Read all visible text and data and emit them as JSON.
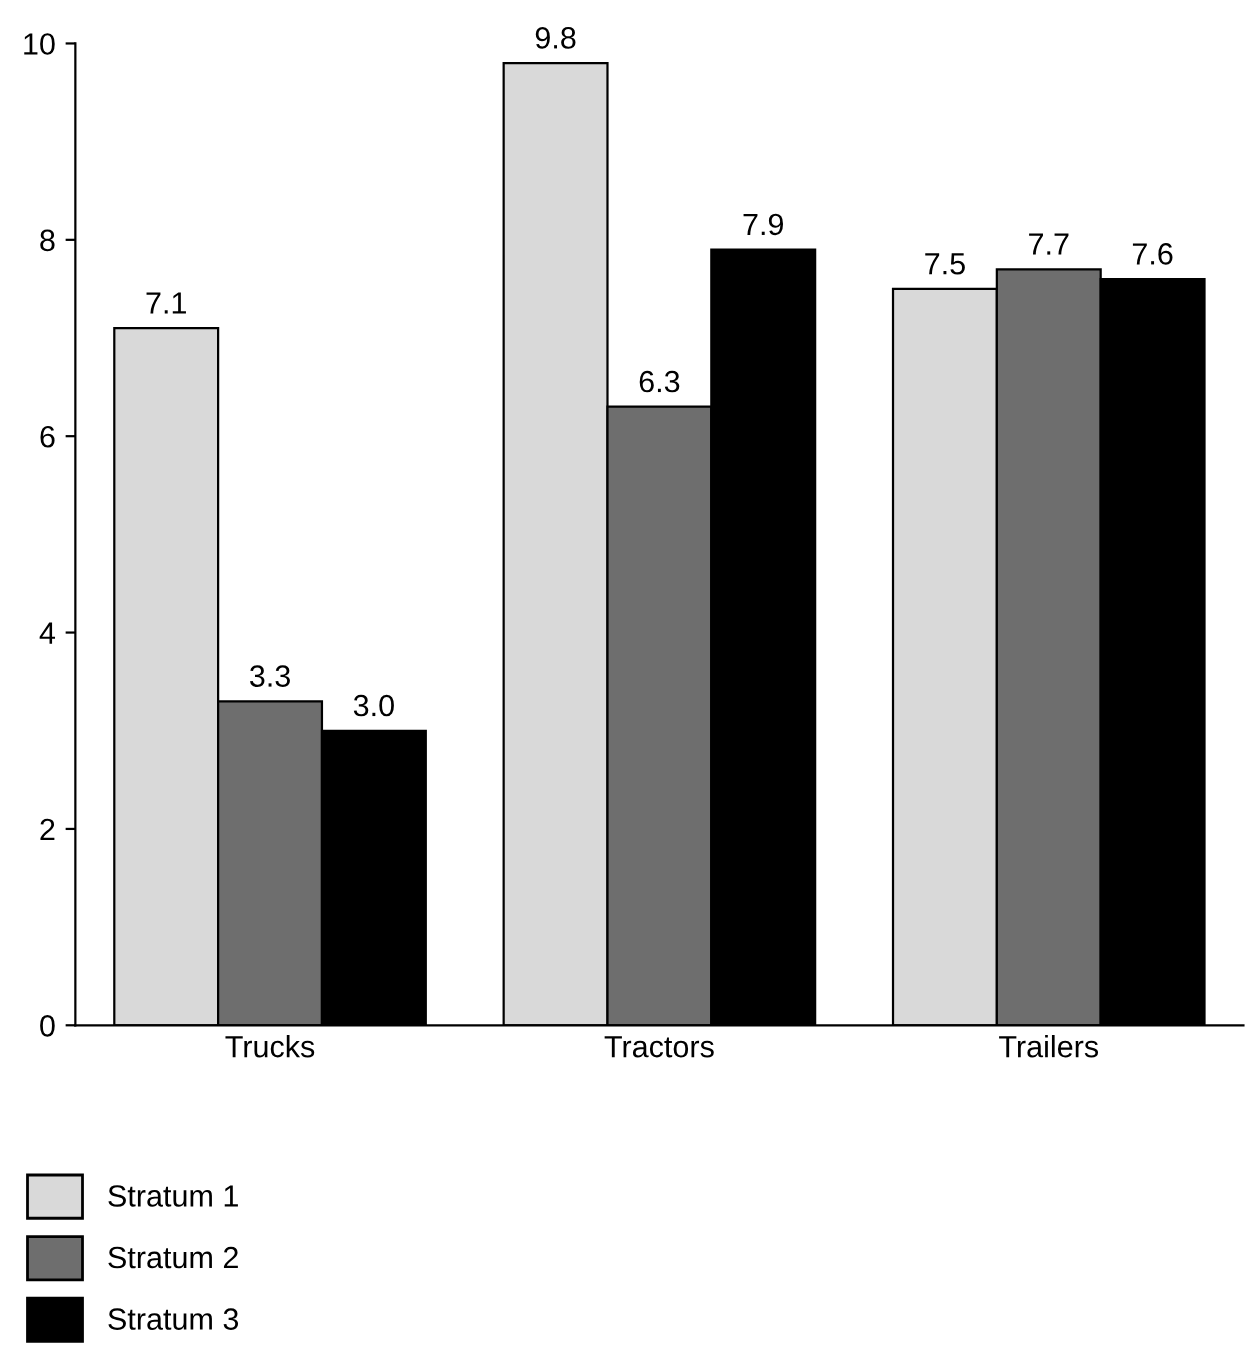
{
  "chart_data": {
    "type": "bar",
    "categories": [
      "Trucks",
      "Tractors",
      "Trailers"
    ],
    "series": [
      {
        "name": "Stratum 1",
        "color": "#d9d9d9",
        "values": [
          7.1,
          9.8,
          7.5
        ],
        "value_labels": [
          "7.1",
          "9.8",
          "7.5"
        ]
      },
      {
        "name": "Stratum 2",
        "color": "#6e6e6e",
        "values": [
          3.3,
          6.3,
          7.7
        ],
        "value_labels": [
          "3.3",
          "6.3",
          "7.7"
        ]
      },
      {
        "name": "Stratum 3",
        "color": "#000000",
        "values": [
          3.0,
          7.9,
          7.6
        ],
        "value_labels": [
          "3.0",
          "7.9",
          "7.6"
        ]
      }
    ],
    "ylim": [
      0,
      10
    ],
    "yticks": [
      0,
      2,
      4,
      6,
      8,
      10
    ],
    "grid": false,
    "legend": "bottom left"
  }
}
